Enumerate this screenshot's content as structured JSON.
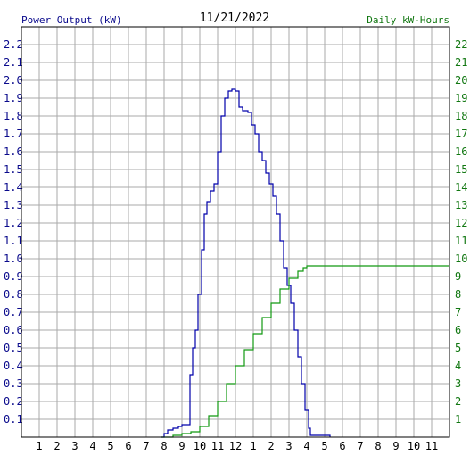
{
  "chart_data": {
    "type": "line",
    "title": "11/21/2022",
    "ylabel_left": "Power Output (kW)",
    "ylabel_right": "Daily kW-Hours",
    "x_tick_labels": [
      "1",
      "2",
      "3",
      "4",
      "5",
      "6",
      "7",
      "8",
      "9",
      "10",
      "11",
      "12",
      "1",
      "2",
      "3",
      "4",
      "5",
      "6",
      "7",
      "8",
      "9",
      "10",
      "11"
    ],
    "x_range_hours": [
      0,
      24
    ],
    "ylim_left": [
      0,
      2.3
    ],
    "ylim_right": [
      0,
      23
    ],
    "y_ticks_left": [
      "0.1",
      "0.2",
      "0.3",
      "0.4",
      "0.5",
      "0.6",
      "0.7",
      "0.8",
      "0.9",
      "1.0",
      "1.1",
      "1.2",
      "1.3",
      "1.4",
      "1.5",
      "1.6",
      "1.7",
      "1.8",
      "1.9",
      "2.0",
      "2.1",
      "2.2"
    ],
    "y_ticks_right": [
      "1",
      "2",
      "3",
      "4",
      "5",
      "6",
      "7",
      "8",
      "9",
      "10",
      "11",
      "12",
      "13",
      "14",
      "15",
      "16",
      "17",
      "18",
      "19",
      "20",
      "21",
      "22"
    ],
    "grid": true,
    "colors": {
      "power": "#0000aa",
      "energy": "#119911",
      "grid": "#aaaaaa",
      "axis": "#000000"
    },
    "series": [
      {
        "name": "Power Output (kW)",
        "axis": "left",
        "points": [
          [
            7.8,
            0
          ],
          [
            8.0,
            0.02
          ],
          [
            8.2,
            0.04
          ],
          [
            8.5,
            0.05
          ],
          [
            8.8,
            0.06
          ],
          [
            9.0,
            0.07
          ],
          [
            9.3,
            0.07
          ],
          [
            9.45,
            0.35
          ],
          [
            9.6,
            0.5
          ],
          [
            9.75,
            0.6
          ],
          [
            9.9,
            0.8
          ],
          [
            10.1,
            1.05
          ],
          [
            10.25,
            1.25
          ],
          [
            10.4,
            1.32
          ],
          [
            10.6,
            1.38
          ],
          [
            10.8,
            1.42
          ],
          [
            11.0,
            1.6
          ],
          [
            11.2,
            1.8
          ],
          [
            11.4,
            1.9
          ],
          [
            11.6,
            1.94
          ],
          [
            11.8,
            1.95
          ],
          [
            12.0,
            1.94
          ],
          [
            12.2,
            1.85
          ],
          [
            12.4,
            1.83
          ],
          [
            12.7,
            1.82
          ],
          [
            12.9,
            1.75
          ],
          [
            13.1,
            1.7
          ],
          [
            13.3,
            1.6
          ],
          [
            13.5,
            1.55
          ],
          [
            13.7,
            1.48
          ],
          [
            13.9,
            1.42
          ],
          [
            14.1,
            1.35
          ],
          [
            14.3,
            1.25
          ],
          [
            14.5,
            1.1
          ],
          [
            14.7,
            0.95
          ],
          [
            14.9,
            0.85
          ],
          [
            15.1,
            0.75
          ],
          [
            15.3,
            0.6
          ],
          [
            15.5,
            0.45
          ],
          [
            15.7,
            0.3
          ],
          [
            15.9,
            0.15
          ],
          [
            16.1,
            0.05
          ],
          [
            16.2,
            0.01
          ],
          [
            16.5,
            0.01
          ],
          [
            17.1,
            0.01
          ],
          [
            17.3,
            0
          ]
        ]
      },
      {
        "name": "Daily kW-Hours",
        "axis": "right",
        "points": [
          [
            7.8,
            0
          ],
          [
            8.5,
            0.1
          ],
          [
            9.0,
            0.2
          ],
          [
            9.5,
            0.3
          ],
          [
            10.0,
            0.6
          ],
          [
            10.5,
            1.2
          ],
          [
            11.0,
            2.0
          ],
          [
            11.5,
            3.0
          ],
          [
            12.0,
            4.0
          ],
          [
            12.5,
            4.9
          ],
          [
            13.0,
            5.8
          ],
          [
            13.5,
            6.7
          ],
          [
            14.0,
            7.5
          ],
          [
            14.5,
            8.3
          ],
          [
            15.0,
            8.9
          ],
          [
            15.5,
            9.3
          ],
          [
            15.8,
            9.5
          ],
          [
            16.0,
            9.6
          ],
          [
            17.0,
            9.6
          ],
          [
            20.0,
            9.6
          ],
          [
            24.0,
            9.6
          ]
        ]
      }
    ]
  }
}
